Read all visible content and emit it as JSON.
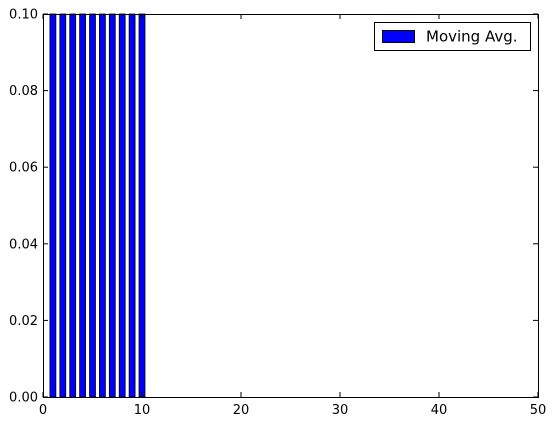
{
  "chart_data": {
    "type": "bar",
    "x": [
      1,
      2,
      3,
      4,
      5,
      6,
      7,
      8,
      9,
      10
    ],
    "series": [
      {
        "name": "Moving Avg.",
        "values": [
          0.1,
          0.1,
          0.1,
          0.1,
          0.1,
          0.1,
          0.1,
          0.1,
          0.1,
          0.1
        ],
        "color": "#0000ff"
      }
    ],
    "bar_width": 0.6,
    "xlim": [
      0,
      50
    ],
    "ylim": [
      0,
      0.1
    ],
    "xticks": [
      0,
      10,
      20,
      30,
      40,
      50
    ],
    "yticks": [
      0.0,
      0.02,
      0.04,
      0.06,
      0.08,
      0.1
    ],
    "xtick_labels": [
      "0",
      "10",
      "20",
      "30",
      "40",
      "50"
    ],
    "ytick_labels": [
      "0.00",
      "0.02",
      "0.04",
      "0.06",
      "0.08",
      "0.10"
    ],
    "grid": false,
    "legend": {
      "position": "top-right",
      "entries": [
        "Moving Avg."
      ]
    },
    "title": "",
    "xlabel": "",
    "ylabel": ""
  }
}
